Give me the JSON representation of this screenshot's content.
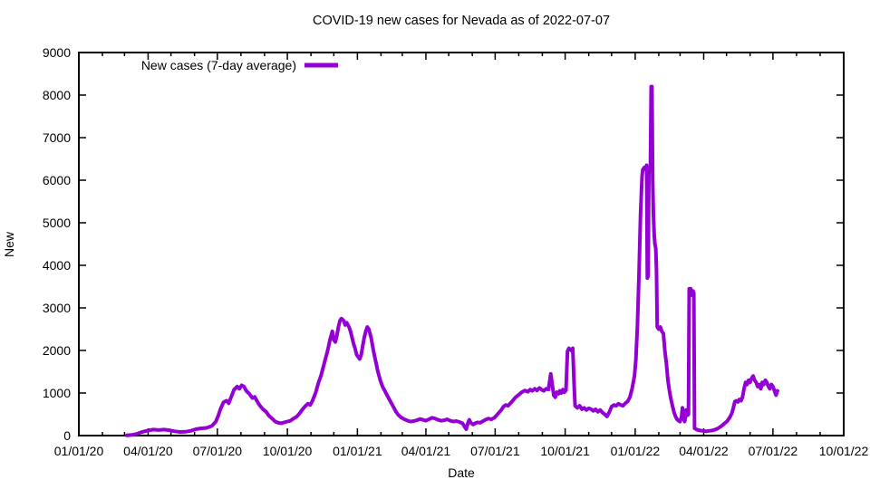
{
  "title": "COVID-19 new cases for Nevada as of 2022-07-07",
  "legend": {
    "label": "New cases (7-day average)"
  },
  "axes": {
    "x_label": "Date",
    "y_label": "New"
  },
  "colors": {
    "line": "#9400d3",
    "axis": "#000000",
    "text": "#000000",
    "background": "#ffffff"
  },
  "chart_data": {
    "type": "line",
    "title": "COVID-19 new cases for Nevada as of 2022-07-07",
    "xlabel": "Date",
    "ylabel": "New",
    "legend_position": "top-left-inside",
    "grid": false,
    "x_axis": {
      "unit": "days since 2020-01-01",
      "range": [
        0,
        1005
      ],
      "major_ticks": [
        {
          "day": 0,
          "label": "01/01/20"
        },
        {
          "day": 91,
          "label": "04/01/20"
        },
        {
          "day": 182,
          "label": "07/01/20"
        },
        {
          "day": 274,
          "label": "10/01/20"
        },
        {
          "day": 366,
          "label": "01/01/21"
        },
        {
          "day": 456,
          "label": "04/01/21"
        },
        {
          "day": 547,
          "label": "07/01/21"
        },
        {
          "day": 639,
          "label": "10/01/21"
        },
        {
          "day": 731,
          "label": "01/01/22"
        },
        {
          "day": 821,
          "label": "04/01/22"
        },
        {
          "day": 912,
          "label": "07/01/22"
        },
        {
          "day": 1005,
          "label": "10/01/22"
        }
      ],
      "minor_tick_days": [
        0,
        31,
        60,
        91,
        121,
        152,
        182,
        213,
        244,
        274,
        305,
        335,
        366,
        397,
        425,
        456,
        486,
        517,
        547,
        578,
        609,
        639,
        670,
        700,
        731,
        762,
        790,
        821,
        851,
        882,
        912,
        943,
        974,
        1005
      ]
    },
    "y_axis": {
      "min": 0,
      "max": 9000,
      "tick_step": 1000,
      "tick_values": [
        0,
        1000,
        2000,
        3000,
        4000,
        5000,
        6000,
        7000,
        8000,
        9000
      ]
    },
    "series": [
      {
        "name": "New cases (7-day average)",
        "color": "#9400d3",
        "line_width": 4,
        "points": [
          [
            63,
            5
          ],
          [
            70,
            15
          ],
          [
            77,
            45
          ],
          [
            84,
            90
          ],
          [
            91,
            120
          ],
          [
            98,
            140
          ],
          [
            105,
            130
          ],
          [
            112,
            140
          ],
          [
            119,
            125
          ],
          [
            126,
            100
          ],
          [
            133,
            85
          ],
          [
            140,
            90
          ],
          [
            147,
            110
          ],
          [
            154,
            150
          ],
          [
            161,
            170
          ],
          [
            168,
            180
          ],
          [
            175,
            230
          ],
          [
            180,
            330
          ],
          [
            183,
            460
          ],
          [
            186,
            620
          ],
          [
            190,
            780
          ],
          [
            194,
            820
          ],
          [
            197,
            760
          ],
          [
            200,
            900
          ],
          [
            204,
            1080
          ],
          [
            208,
            1150
          ],
          [
            211,
            1100
          ],
          [
            214,
            1180
          ],
          [
            217,
            1150
          ],
          [
            220,
            1050
          ],
          [
            224,
            980
          ],
          [
            228,
            880
          ],
          [
            231,
            910
          ],
          [
            235,
            780
          ],
          [
            238,
            700
          ],
          [
            242,
            620
          ],
          [
            246,
            560
          ],
          [
            250,
            460
          ],
          [
            254,
            400
          ],
          [
            258,
            330
          ],
          [
            262,
            300
          ],
          [
            266,
            290
          ],
          [
            270,
            310
          ],
          [
            274,
            330
          ],
          [
            278,
            350
          ],
          [
            282,
            400
          ],
          [
            286,
            440
          ],
          [
            290,
            520
          ],
          [
            294,
            620
          ],
          [
            298,
            700
          ],
          [
            301,
            750
          ],
          [
            304,
            720
          ],
          [
            307,
            820
          ],
          [
            311,
            1000
          ],
          [
            315,
            1250
          ],
          [
            318,
            1400
          ],
          [
            321,
            1600
          ],
          [
            324,
            1800
          ],
          [
            327,
            2000
          ],
          [
            330,
            2250
          ],
          [
            333,
            2450
          ],
          [
            335,
            2250
          ],
          [
            337,
            2200
          ],
          [
            339,
            2350
          ],
          [
            341,
            2550
          ],
          [
            343,
            2700
          ],
          [
            345,
            2750
          ],
          [
            348,
            2700
          ],
          [
            350,
            2600
          ],
          [
            352,
            2650
          ],
          [
            355,
            2550
          ],
          [
            357,
            2450
          ],
          [
            359,
            2300
          ],
          [
            361,
            2150
          ],
          [
            363,
            2050
          ],
          [
            365,
            1900
          ],
          [
            367,
            1850
          ],
          [
            369,
            1800
          ],
          [
            371,
            1900
          ],
          [
            373,
            2100
          ],
          [
            375,
            2300
          ],
          [
            377,
            2450
          ],
          [
            379,
            2550
          ],
          [
            381,
            2500
          ],
          [
            384,
            2300
          ],
          [
            387,
            2000
          ],
          [
            390,
            1750
          ],
          [
            393,
            1500
          ],
          [
            396,
            1300
          ],
          [
            399,
            1150
          ],
          [
            402,
            1050
          ],
          [
            405,
            950
          ],
          [
            408,
            850
          ],
          [
            411,
            750
          ],
          [
            414,
            650
          ],
          [
            417,
            550
          ],
          [
            420,
            480
          ],
          [
            424,
            420
          ],
          [
            428,
            380
          ],
          [
            432,
            350
          ],
          [
            436,
            330
          ],
          [
            440,
            340
          ],
          [
            444,
            360
          ],
          [
            448,
            390
          ],
          [
            452,
            370
          ],
          [
            456,
            350
          ],
          [
            460,
            380
          ],
          [
            464,
            420
          ],
          [
            468,
            400
          ],
          [
            472,
            370
          ],
          [
            476,
            350
          ],
          [
            480,
            360
          ],
          [
            484,
            380
          ],
          [
            488,
            350
          ],
          [
            492,
            330
          ],
          [
            496,
            340
          ],
          [
            500,
            320
          ],
          [
            504,
            290
          ],
          [
            507,
            200
          ],
          [
            509,
            150
          ],
          [
            511,
            280
          ],
          [
            513,
            370
          ],
          [
            515,
            300
          ],
          [
            518,
            260
          ],
          [
            521,
            290
          ],
          [
            524,
            310
          ],
          [
            527,
            300
          ],
          [
            530,
            330
          ],
          [
            534,
            370
          ],
          [
            538,
            400
          ],
          [
            542,
            380
          ],
          [
            546,
            420
          ],
          [
            549,
            480
          ],
          [
            552,
            540
          ],
          [
            555,
            600
          ],
          [
            558,
            680
          ],
          [
            561,
            720
          ],
          [
            564,
            700
          ],
          [
            567,
            760
          ],
          [
            570,
            820
          ],
          [
            574,
            900
          ],
          [
            578,
            960
          ],
          [
            582,
            1020
          ],
          [
            586,
            1060
          ],
          [
            590,
            1030
          ],
          [
            593,
            1080
          ],
          [
            596,
            1050
          ],
          [
            599,
            1100
          ],
          [
            602,
            1060
          ],
          [
            605,
            1120
          ],
          [
            608,
            1080
          ],
          [
            611,
            1050
          ],
          [
            614,
            1100
          ],
          [
            617,
            1080
          ],
          [
            620,
            1450
          ],
          [
            622,
            1200
          ],
          [
            624,
            950
          ],
          [
            626,
            900
          ],
          [
            628,
            1020
          ],
          [
            630,
            980
          ],
          [
            632,
            1050
          ],
          [
            634,
            1000
          ],
          [
            636,
            1080
          ],
          [
            638,
            1020
          ],
          [
            640,
            1060
          ],
          [
            642,
            1980
          ],
          [
            644,
            2050
          ],
          [
            647,
            2000
          ],
          [
            649,
            2050
          ],
          [
            651,
            1100
          ],
          [
            652,
            700
          ],
          [
            655,
            650
          ],
          [
            658,
            700
          ],
          [
            661,
            620
          ],
          [
            664,
            650
          ],
          [
            667,
            600
          ],
          [
            670,
            640
          ],
          [
            673,
            620
          ],
          [
            676,
            580
          ],
          [
            679,
            620
          ],
          [
            682,
            560
          ],
          [
            685,
            600
          ],
          [
            688,
            540
          ],
          [
            691,
            500
          ],
          [
            694,
            450
          ],
          [
            697,
            550
          ],
          [
            700,
            680
          ],
          [
            703,
            720
          ],
          [
            706,
            700
          ],
          [
            709,
            750
          ],
          [
            712,
            720
          ],
          [
            715,
            700
          ],
          [
            718,
            760
          ],
          [
            721,
            800
          ],
          [
            724,
            900
          ],
          [
            727,
            1100
          ],
          [
            730,
            1400
          ],
          [
            732,
            1800
          ],
          [
            734,
            2600
          ],
          [
            736,
            3800
          ],
          [
            738,
            5200
          ],
          [
            740,
            6100
          ],
          [
            741,
            6250
          ],
          [
            743,
            6300
          ],
          [
            745,
            6250
          ],
          [
            746,
            6350
          ],
          [
            747,
            3700
          ],
          [
            748,
            3750
          ],
          [
            749,
            6200
          ],
          [
            750,
            6300
          ],
          [
            751,
            6300
          ],
          [
            752,
            8200
          ],
          [
            753,
            8200
          ],
          [
            754,
            6000
          ],
          [
            755,
            5200
          ],
          [
            756,
            4700
          ],
          [
            757,
            4500
          ],
          [
            758,
            4400
          ],
          [
            759,
            3900
          ],
          [
            760,
            2550
          ],
          [
            762,
            2500
          ],
          [
            764,
            2550
          ],
          [
            766,
            2450
          ],
          [
            768,
            2400
          ],
          [
            770,
            2000
          ],
          [
            772,
            1700
          ],
          [
            774,
            1300
          ],
          [
            776,
            1050
          ],
          [
            778,
            850
          ],
          [
            780,
            700
          ],
          [
            782,
            550
          ],
          [
            784,
            450
          ],
          [
            786,
            380
          ],
          [
            788,
            350
          ],
          [
            790,
            330
          ],
          [
            792,
            450
          ],
          [
            793,
            650
          ],
          [
            794,
            550
          ],
          [
            795,
            380
          ],
          [
            796,
            330
          ],
          [
            797,
            420
          ],
          [
            798,
            600
          ],
          [
            799,
            550
          ],
          [
            800,
            480
          ],
          [
            801,
            500
          ],
          [
            802,
            3450
          ],
          [
            804,
            3450
          ],
          [
            805,
            3300
          ],
          [
            806,
            3400
          ],
          [
            807,
            3400
          ],
          [
            808,
            3350
          ],
          [
            809,
            170
          ],
          [
            812,
            140
          ],
          [
            816,
            120
          ],
          [
            820,
            110
          ],
          [
            824,
            100
          ],
          [
            828,
            110
          ],
          [
            832,
            120
          ],
          [
            836,
            140
          ],
          [
            840,
            170
          ],
          [
            844,
            220
          ],
          [
            848,
            280
          ],
          [
            852,
            340
          ],
          [
            855,
            420
          ],
          [
            858,
            520
          ],
          [
            860,
            650
          ],
          [
            862,
            800
          ],
          [
            864,
            820
          ],
          [
            866,
            790
          ],
          [
            868,
            850
          ],
          [
            870,
            820
          ],
          [
            872,
            900
          ],
          [
            874,
            1100
          ],
          [
            876,
            1250
          ],
          [
            878,
            1200
          ],
          [
            880,
            1300
          ],
          [
            882,
            1250
          ],
          [
            884,
            1350
          ],
          [
            886,
            1400
          ],
          [
            888,
            1300
          ],
          [
            890,
            1250
          ],
          [
            892,
            1150
          ],
          [
            894,
            1200
          ],
          [
            896,
            1100
          ],
          [
            898,
            1250
          ],
          [
            900,
            1200
          ],
          [
            902,
            1300
          ],
          [
            904,
            1250
          ],
          [
            906,
            1150
          ],
          [
            908,
            1100
          ],
          [
            910,
            1200
          ],
          [
            912,
            1150
          ],
          [
            914,
            1050
          ],
          [
            916,
            950
          ],
          [
            918,
            1050
          ]
        ]
      }
    ]
  }
}
